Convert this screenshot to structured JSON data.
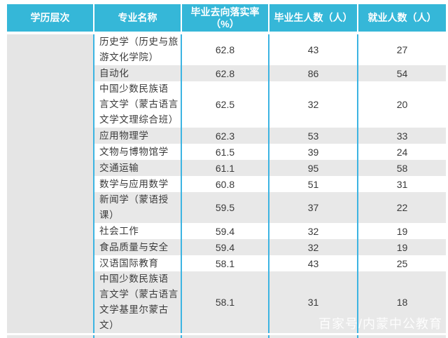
{
  "table": {
    "headers": [
      "学历层次",
      "专业名称",
      "毕业去向落实率\n（%）",
      "毕业生人数（人）",
      "就业人数（人）"
    ],
    "education_level_cell": "",
    "rows": [
      {
        "major": "历史学（历史与旅\n游文化学院）",
        "rate": "62.8",
        "graduates": "43",
        "employed": "27"
      },
      {
        "major": "自动化",
        "rate": "62.8",
        "graduates": "86",
        "employed": "54"
      },
      {
        "major": "中国少数民族语\n言文学（蒙古语言\n文学文理综合班）",
        "rate": "62.5",
        "graduates": "32",
        "employed": "20"
      },
      {
        "major": "应用物理学",
        "rate": "62.3",
        "graduates": "53",
        "employed": "33"
      },
      {
        "major": "文物与博物馆学",
        "rate": "61.5",
        "graduates": "39",
        "employed": "24"
      },
      {
        "major": "交通运输",
        "rate": "61.1",
        "graduates": "95",
        "employed": "58"
      },
      {
        "major": "数学与应用数学",
        "rate": "60.8",
        "graduates": "51",
        "employed": "31"
      },
      {
        "major": "新闻学（蒙语授\n课）",
        "rate": "59.5",
        "graduates": "37",
        "employed": "22"
      },
      {
        "major": "社会工作",
        "rate": "59.4",
        "graduates": "32",
        "employed": "19"
      },
      {
        "major": "食品质量与安全",
        "rate": "59.4",
        "graduates": "32",
        "employed": "19"
      },
      {
        "major": "汉语国际教育",
        "rate": "58.1",
        "graduates": "43",
        "employed": "25"
      },
      {
        "major": "中国少数民族语\n言文学（蒙古语言\n文学基里尔蒙古\n文）",
        "rate": "58.1",
        "graduates": "31",
        "employed": "18"
      }
    ]
  },
  "watermark": "百家号/内蒙中公教育",
  "colors": {
    "header_bg": "#35B7D8",
    "divider_blue": "#3CB4E2",
    "row_alt_bg": "#E8E8E8",
    "merged_cell_bg": "#E5E5E5",
    "header_text": "#FFFFFF",
    "body_text": "#3A3A3A"
  },
  "chart_data": {
    "type": "table",
    "title": "",
    "columns": [
      "学历层次",
      "专业名称",
      "毕业去向落实率（%）",
      "毕业生人数（人）",
      "就业人数（人）"
    ],
    "rows": [
      {
        "education_level": "",
        "major": "历史学（历史与旅游文化学院）",
        "placement_rate_pct": 62.8,
        "graduates": 43,
        "employed": 27
      },
      {
        "education_level": "",
        "major": "自动化",
        "placement_rate_pct": 62.8,
        "graduates": 86,
        "employed": 54
      },
      {
        "education_level": "",
        "major": "中国少数民族语言文学（蒙古语言文学文理综合班）",
        "placement_rate_pct": 62.5,
        "graduates": 32,
        "employed": 20
      },
      {
        "education_level": "",
        "major": "应用物理学",
        "placement_rate_pct": 62.3,
        "graduates": 53,
        "employed": 33
      },
      {
        "education_level": "",
        "major": "文物与博物馆学",
        "placement_rate_pct": 61.5,
        "graduates": 39,
        "employed": 24
      },
      {
        "education_level": "",
        "major": "交通运输",
        "placement_rate_pct": 61.1,
        "graduates": 95,
        "employed": 58
      },
      {
        "education_level": "",
        "major": "数学与应用数学",
        "placement_rate_pct": 60.8,
        "graduates": 51,
        "employed": 31
      },
      {
        "education_level": "",
        "major": "新闻学（蒙语授课）",
        "placement_rate_pct": 59.5,
        "graduates": 37,
        "employed": 22
      },
      {
        "education_level": "",
        "major": "社会工作",
        "placement_rate_pct": 59.4,
        "graduates": 32,
        "employed": 19
      },
      {
        "education_level": "",
        "major": "食品质量与安全",
        "placement_rate_pct": 59.4,
        "graduates": 32,
        "employed": 19
      },
      {
        "education_level": "",
        "major": "汉语国际教育",
        "placement_rate_pct": 58.1,
        "graduates": 43,
        "employed": 25
      },
      {
        "education_level": "",
        "major": "中国少数民族语言文学（蒙古语言文学基里尔蒙古文）",
        "placement_rate_pct": 58.1,
        "graduates": 31,
        "employed": 18
      }
    ]
  }
}
